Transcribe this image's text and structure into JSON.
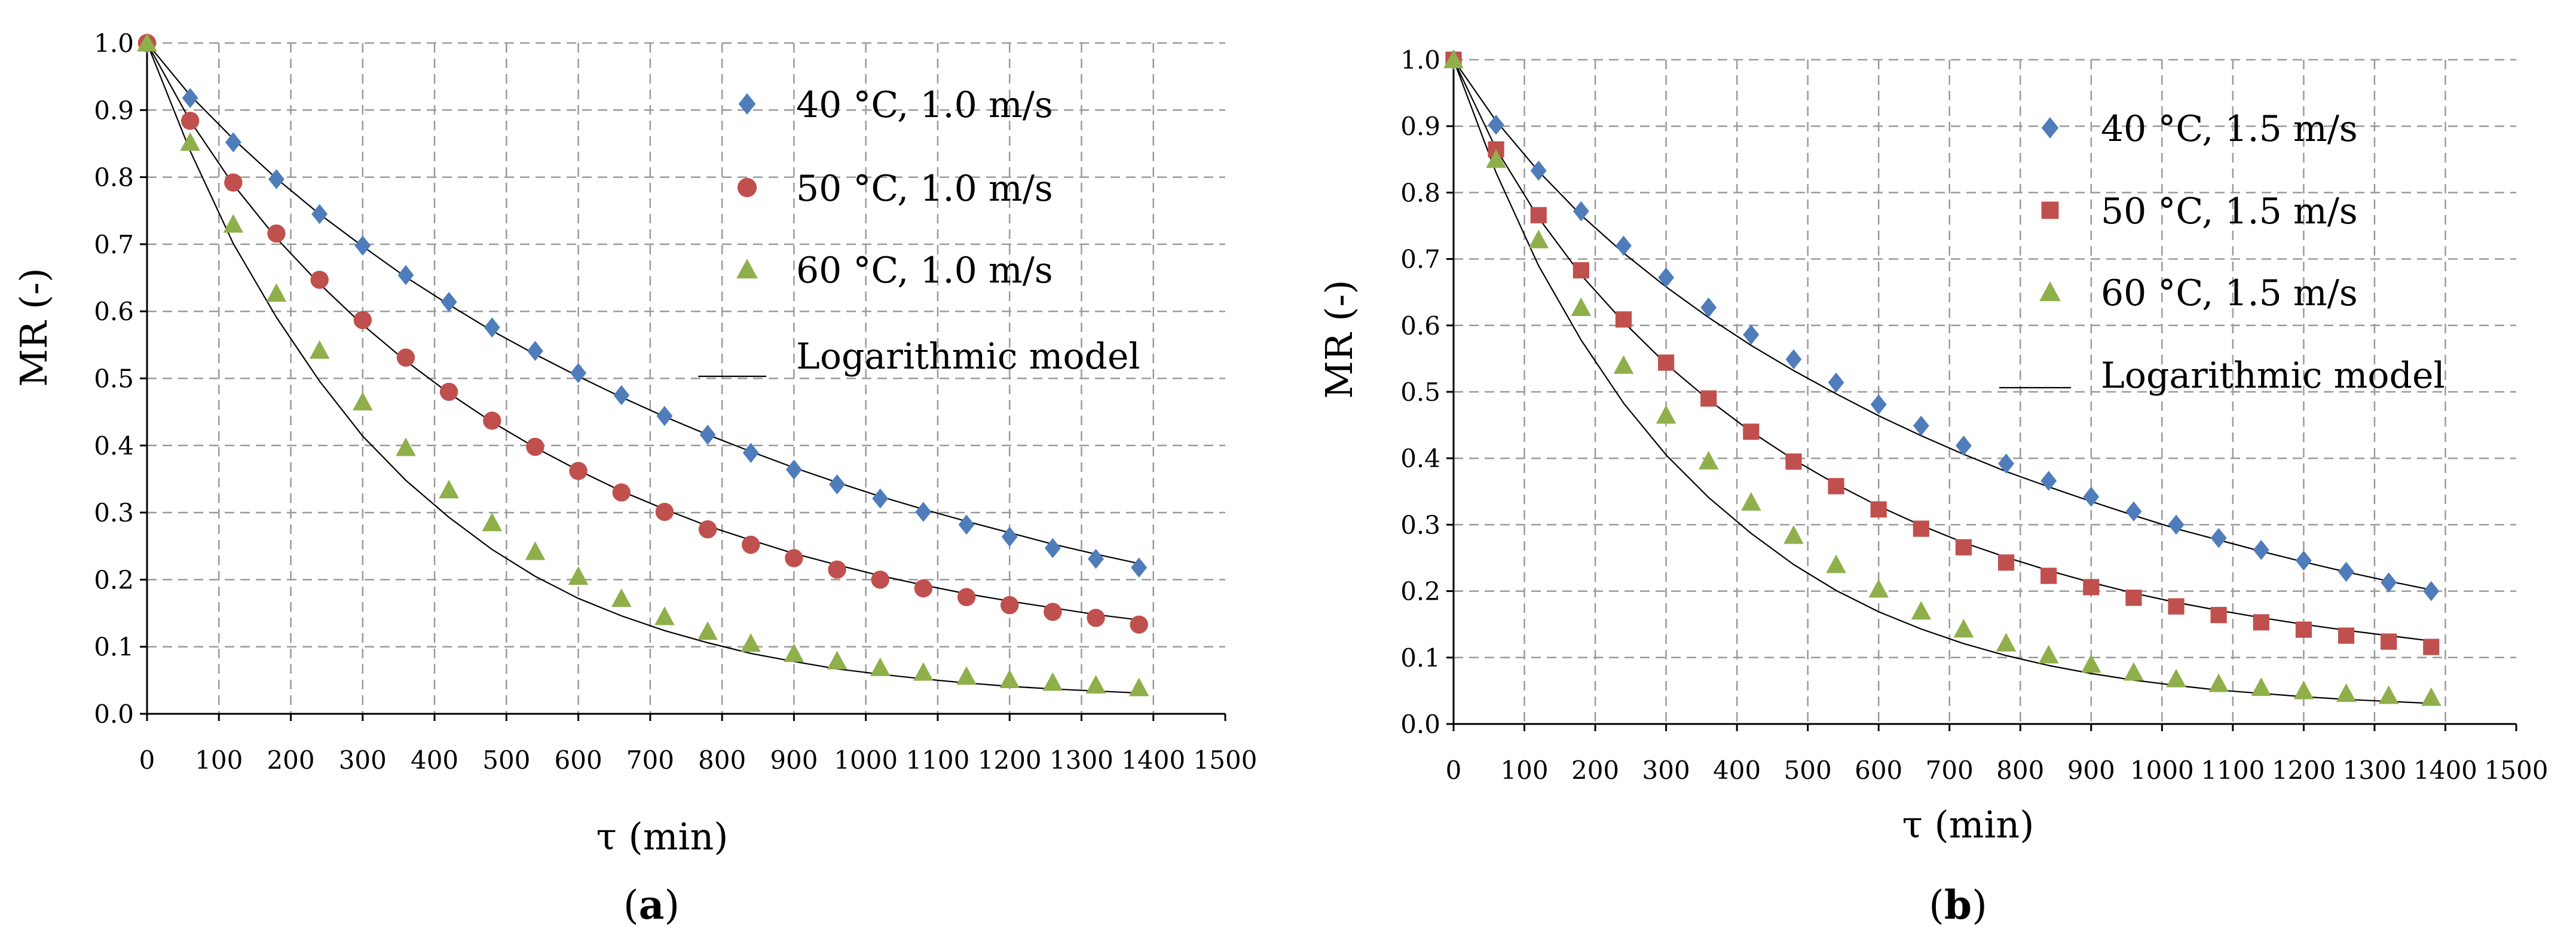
{
  "chart_data": [
    {
      "type": "scatter",
      "panel_label": "a",
      "title": "",
      "xlabel": "τ (min)",
      "ylabel": "MR (-)",
      "xlim": [
        0,
        1500
      ],
      "ylim": [
        0,
        1.0
      ],
      "xticks": [
        "0",
        "100",
        "200",
        "300",
        "400",
        "500",
        "600",
        "700",
        "800",
        "900",
        "1000",
        "1100",
        "1200",
        "1300",
        "1400",
        "1500"
      ],
      "yticks": [
        "0.0",
        "0.1",
        "0.2",
        "0.3",
        "0.4",
        "0.5",
        "0.6",
        "0.7",
        "0.8",
        "0.9",
        "1.0"
      ],
      "grid": true,
      "legend_position": "top-right",
      "model_label": "Logarithmic model",
      "x": [
        0,
        60,
        120,
        180,
        240,
        300,
        360,
        420,
        480,
        540,
        600,
        660,
        720,
        780,
        840,
        900,
        960,
        1020,
        1080,
        1140,
        1200,
        1260,
        1320,
        1380
      ],
      "series": [
        {
          "name": "40 °C, 1.0 m/s",
          "marker": "diamond",
          "color": "#4f7cba",
          "values": [
            1.0,
            0.918,
            0.852,
            0.797,
            0.745,
            0.698,
            0.654,
            0.614,
            0.576,
            0.541,
            0.508,
            0.475,
            0.444,
            0.416,
            0.389,
            0.364,
            0.342,
            0.321,
            0.301,
            0.282,
            0.264,
            0.247,
            0.231,
            0.218
          ],
          "model": [
            1.0,
            0.922,
            0.857,
            0.798,
            0.745,
            0.697,
            0.651,
            0.61,
            0.571,
            0.536,
            0.503,
            0.472,
            0.443,
            0.416,
            0.391,
            0.367,
            0.345,
            0.324,
            0.305,
            0.287,
            0.27,
            0.253,
            0.238,
            0.224
          ]
        },
        {
          "name": "50 °C, 1.0 m/s",
          "marker": "circle",
          "color": "#c0504d",
          "values": [
            1.0,
            0.884,
            0.792,
            0.716,
            0.647,
            0.587,
            0.531,
            0.48,
            0.437,
            0.398,
            0.362,
            0.33,
            0.301,
            0.275,
            0.252,
            0.232,
            0.215,
            0.2,
            0.187,
            0.174,
            0.162,
            0.152,
            0.143,
            0.133
          ],
          "model": [
            1.0,
            0.884,
            0.789,
            0.709,
            0.641,
            0.58,
            0.526,
            0.478,
            0.435,
            0.397,
            0.363,
            0.332,
            0.305,
            0.28,
            0.259,
            0.239,
            0.222,
            0.206,
            0.192,
            0.179,
            0.168,
            0.158,
            0.148,
            0.14
          ]
        },
        {
          "name": "60 °C, 1.0 m/s",
          "marker": "triangle",
          "color": "#8faf4a",
          "values": [
            1.0,
            0.852,
            0.73,
            0.627,
            0.542,
            0.465,
            0.397,
            0.334,
            0.285,
            0.242,
            0.205,
            0.172,
            0.145,
            0.123,
            0.105,
            0.09,
            0.079,
            0.069,
            0.062,
            0.056,
            0.051,
            0.047,
            0.043,
            0.039
          ],
          "model": [
            1.0,
            0.839,
            0.701,
            0.591,
            0.496,
            0.414,
            0.348,
            0.293,
            0.245,
            0.205,
            0.172,
            0.146,
            0.124,
            0.106,
            0.09,
            0.078,
            0.067,
            0.059,
            0.052,
            0.046,
            0.041,
            0.037,
            0.034,
            0.031
          ]
        }
      ]
    },
    {
      "type": "scatter",
      "panel_label": "b",
      "title": "",
      "xlabel": "τ (min)",
      "ylabel": "MR (-)",
      "xlim": [
        0,
        1500
      ],
      "ylim": [
        0,
        1.0
      ],
      "xticks": [
        "0",
        "100",
        "200",
        "300",
        "400",
        "500",
        "600",
        "700",
        "800",
        "900",
        "1000",
        "1100",
        "1200",
        "1300",
        "1400",
        "1500"
      ],
      "yticks": [
        "0.0",
        "0.1",
        "0.2",
        "0.3",
        "0.4",
        "0.5",
        "0.6",
        "0.7",
        "0.8",
        "0.9",
        "1.0"
      ],
      "grid": true,
      "legend_position": "top-right",
      "model_label": "Logarithmic model",
      "x": [
        0,
        60,
        120,
        180,
        240,
        300,
        360,
        420,
        480,
        540,
        600,
        660,
        720,
        780,
        840,
        900,
        960,
        1020,
        1080,
        1140,
        1200,
        1260,
        1320,
        1380
      ],
      "series": [
        {
          "name": "40 °C, 1.5 m/s",
          "marker": "diamond",
          "color": "#4f7cba",
          "values": [
            1.0,
            0.902,
            0.833,
            0.772,
            0.72,
            0.672,
            0.627,
            0.586,
            0.549,
            0.514,
            0.481,
            0.449,
            0.419,
            0.392,
            0.366,
            0.342,
            0.32,
            0.3,
            0.28,
            0.262,
            0.246,
            0.229,
            0.213,
            0.2
          ],
          "model": [
            1.0,
            0.908,
            0.832,
            0.766,
            0.709,
            0.658,
            0.612,
            0.57,
            0.532,
            0.497,
            0.464,
            0.434,
            0.406,
            0.38,
            0.357,
            0.335,
            0.314,
            0.294,
            0.277,
            0.26,
            0.244,
            0.229,
            0.215,
            0.202
          ]
        },
        {
          "name": "50 °C, 1.5 m/s",
          "marker": "square",
          "color": "#c0504d",
          "values": [
            1.0,
            0.865,
            0.766,
            0.683,
            0.609,
            0.544,
            0.49,
            0.44,
            0.395,
            0.358,
            0.323,
            0.294,
            0.266,
            0.243,
            0.223,
            0.206,
            0.19,
            0.177,
            0.164,
            0.153,
            0.142,
            0.133,
            0.124,
            0.116
          ],
          "model": [
            1.0,
            0.866,
            0.762,
            0.676,
            0.605,
            0.542,
            0.488,
            0.44,
            0.398,
            0.361,
            0.328,
            0.299,
            0.273,
            0.251,
            0.231,
            0.213,
            0.197,
            0.183,
            0.171,
            0.16,
            0.15,
            0.141,
            0.133,
            0.125
          ]
        },
        {
          "name": "60 °C, 1.5 m/s",
          "marker": "triangle",
          "color": "#8faf4a",
          "values": [
            1.0,
            0.85,
            0.729,
            0.627,
            0.54,
            0.465,
            0.396,
            0.334,
            0.284,
            0.24,
            0.203,
            0.17,
            0.143,
            0.122,
            0.104,
            0.09,
            0.078,
            0.068,
            0.061,
            0.055,
            0.05,
            0.046,
            0.043,
            0.04
          ],
          "model": [
            1.0,
            0.83,
            0.69,
            0.578,
            0.483,
            0.405,
            0.341,
            0.287,
            0.24,
            0.201,
            0.169,
            0.143,
            0.121,
            0.103,
            0.088,
            0.076,
            0.066,
            0.058,
            0.051,
            0.046,
            0.041,
            0.037,
            0.034,
            0.031
          ]
        }
      ]
    }
  ]
}
